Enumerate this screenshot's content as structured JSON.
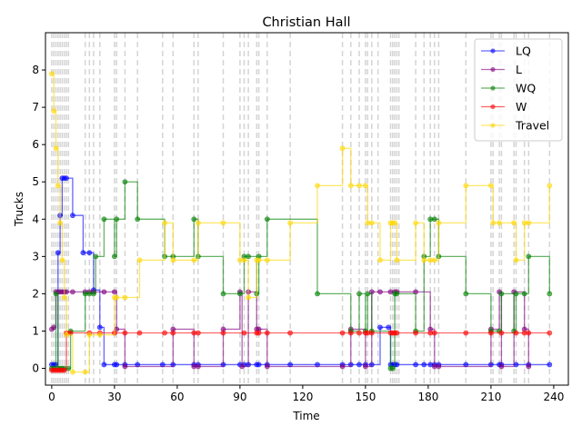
{
  "chart_data": {
    "type": "line",
    "style": "step",
    "title": "Christian Hall",
    "xlabel": "Time",
    "ylabel": "Trucks",
    "xlim": [
      -3,
      247
    ],
    "ylim": [
      -0.45,
      9.0
    ],
    "xticks": [
      0,
      30,
      60,
      90,
      120,
      150,
      180,
      210,
      240
    ],
    "yticks": [
      0,
      1,
      2,
      3,
      4,
      5,
      6,
      7,
      8
    ],
    "grid": false,
    "legend_position": "top-right",
    "vlines": [
      0,
      1,
      2,
      3,
      4,
      5,
      6,
      7,
      8,
      16,
      18,
      20,
      23,
      30,
      31,
      35,
      41,
      53,
      58,
      68,
      70,
      82,
      90,
      92,
      94,
      98,
      99,
      103,
      114,
      139,
      143,
      147,
      150,
      151,
      153,
      156,
      162,
      163,
      164,
      165,
      166,
      174,
      178,
      181,
      183,
      185,
      198,
      210,
      211,
      214,
      215,
      221,
      222,
      226,
      228,
      238
    ],
    "series": [
      {
        "name": "LQ",
        "color": "#0000ff",
        "x": [
          0,
          1,
          2,
          3,
          4,
          5,
          6,
          7,
          10,
          15,
          18,
          20,
          23,
          25,
          30,
          31,
          35,
          41,
          53,
          58,
          68,
          70,
          82,
          90,
          92,
          94,
          98,
          99,
          103,
          114,
          127,
          139,
          143,
          147,
          150,
          153,
          157,
          161,
          162,
          163,
          164,
          165,
          174,
          178,
          181,
          183,
          185,
          198,
          210,
          214,
          215,
          222,
          228,
          238
        ],
        "y": [
          0.1,
          0.1,
          0.1,
          3.1,
          4.1,
          5.1,
          5.1,
          5.1,
          4.1,
          3.1,
          3.1,
          2.1,
          1.1,
          0.1,
          0.1,
          0.1,
          0.1,
          0.1,
          0.1,
          0.1,
          0.1,
          0.1,
          0.1,
          0.1,
          0.1,
          0.1,
          0.1,
          0.1,
          0.1,
          0.1,
          0.1,
          0.1,
          0.1,
          0.1,
          0.1,
          0.1,
          1.1,
          1.1,
          0.1,
          0.1,
          0.1,
          0.1,
          0.1,
          0.1,
          0.1,
          0.1,
          0.1,
          0.1,
          0.1,
          0.1,
          0.1,
          0.1,
          0.1,
          0.1
        ]
      },
      {
        "name": "L",
        "color": "#800080",
        "x": [
          0,
          1,
          2,
          3,
          4,
          5,
          6,
          7,
          10,
          16,
          18,
          20,
          25,
          30,
          31,
          35,
          58,
          68,
          70,
          82,
          90,
          91,
          94,
          98,
          99,
          103,
          139,
          143,
          150,
          153,
          157,
          162,
          164,
          165,
          174,
          181,
          183,
          185,
          210,
          214,
          215,
          221,
          226,
          228
        ],
        "y": [
          1.05,
          1.1,
          2.05,
          2.05,
          2.05,
          2.05,
          2.05,
          2.05,
          2.05,
          2.05,
          2.05,
          2.05,
          2.05,
          2.05,
          1.05,
          0.05,
          1.05,
          0.05,
          0.05,
          1.05,
          2.05,
          0.05,
          2.05,
          1.05,
          1.05,
          0.05,
          0.05,
          1.05,
          0.05,
          2.05,
          2.05,
          2.05,
          2.05,
          2.05,
          2.05,
          1.05,
          0.05,
          0.05,
          1.05,
          2.05,
          0.05,
          2.05,
          1.05,
          0.05
        ]
      },
      {
        "name": "WQ",
        "color": "#008000",
        "x": [
          0,
          1,
          2,
          3,
          4,
          5,
          6,
          8,
          9,
          16,
          18,
          20,
          21,
          25,
          30,
          31,
          35,
          41,
          54,
          58,
          68,
          70,
          82,
          90,
          92,
          94,
          98,
          99,
          103,
          127,
          143,
          147,
          150,
          151,
          153,
          162,
          163,
          164,
          165,
          174,
          178,
          181,
          183,
          185,
          198,
          210,
          214,
          215,
          221,
          222,
          226,
          228,
          238
        ],
        "y": [
          0.0,
          0.0,
          2.0,
          0.0,
          0.0,
          0.0,
          0.0,
          0.0,
          1.0,
          2.0,
          2.0,
          2.0,
          3.0,
          4.0,
          3.0,
          4.0,
          5.0,
          4.0,
          3.0,
          3.0,
          4.0,
          3.0,
          2.0,
          2.0,
          3.0,
          3.0,
          2.0,
          3.0,
          4.0,
          2.0,
          1.0,
          2.0,
          1.0,
          2.0,
          1.0,
          0.0,
          0.0,
          2.0,
          2.0,
          1.0,
          3.0,
          4.0,
          4.0,
          3.0,
          2.0,
          1.0,
          1.0,
          2.0,
          1.0,
          2.0,
          2.0,
          3.0,
          2.0
        ]
      },
      {
        "name": "W",
        "color": "#ff0000",
        "x": [
          0,
          1,
          2,
          3,
          4,
          5,
          6,
          7,
          9,
          18,
          23,
          30,
          35,
          42,
          54,
          58,
          68,
          70,
          82,
          92,
          98,
          99,
          103,
          114,
          139,
          143,
          147,
          150,
          151,
          153,
          162,
          163,
          164,
          165,
          174,
          181,
          183,
          198,
          210,
          215,
          222,
          226,
          228,
          238
        ],
        "y": [
          -0.05,
          -0.05,
          -0.05,
          -0.05,
          -0.05,
          -0.05,
          -0.05,
          0.95,
          0.95,
          0.95,
          0.95,
          0.95,
          0.95,
          0.95,
          0.95,
          0.95,
          0.95,
          0.95,
          0.95,
          0.95,
          0.95,
          0.95,
          0.95,
          0.95,
          0.95,
          0.95,
          0.95,
          0.95,
          0.95,
          0.95,
          0.95,
          0.95,
          0.95,
          0.95,
          0.95,
          0.95,
          0.95,
          0.95,
          0.95,
          0.95,
          0.95,
          0.95,
          0.95,
          0.95
        ]
      },
      {
        "name": "Travel",
        "color": "#ffd700",
        "x": [
          0,
          1,
          2,
          3,
          4,
          5,
          6,
          7,
          10,
          16,
          18,
          23,
          30,
          31,
          35,
          42,
          54,
          58,
          68,
          70,
          82,
          90,
          92,
          94,
          98,
          99,
          103,
          114,
          127,
          139,
          143,
          147,
          150,
          151,
          153,
          157,
          162,
          163,
          164,
          165,
          174,
          178,
          181,
          183,
          185,
          198,
          210,
          211,
          214,
          221,
          222,
          226,
          228,
          238
        ],
        "y": [
          7.9,
          6.9,
          5.9,
          4.9,
          3.9,
          2.9,
          1.9,
          0.9,
          -0.1,
          -0.1,
          0.9,
          0.9,
          1.9,
          1.9,
          1.9,
          2.9,
          3.9,
          2.9,
          2.9,
          3.9,
          3.9,
          2.9,
          2.9,
          1.9,
          2.9,
          2.9,
          2.9,
          3.9,
          4.9,
          5.9,
          4.9,
          4.9,
          4.9,
          3.9,
          3.9,
          2.9,
          3.9,
          3.9,
          3.9,
          2.9,
          3.9,
          2.9,
          2.9,
          2.9,
          3.9,
          4.9,
          4.9,
          3.9,
          3.9,
          3.9,
          2.9,
          3.9,
          3.9,
          4.9
        ]
      }
    ]
  }
}
